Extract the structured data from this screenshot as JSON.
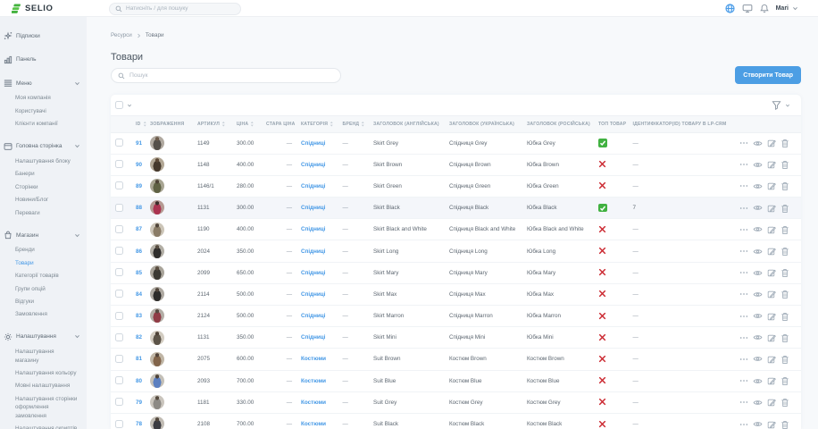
{
  "header": {
    "logo_text": "SELIO",
    "search_placeholder": "Натисніть / для пошуку",
    "user_name": "Mari"
  },
  "sidebar": {
    "items": [
      {
        "label": "Підписки",
        "icon": "sparkles"
      },
      {
        "label": "Панель",
        "icon": "bar-chart"
      },
      {
        "label": "Меню",
        "icon": "hamburger",
        "expanded": true,
        "children": [
          {
            "label": "Моя компанія"
          },
          {
            "label": "Користувачі"
          },
          {
            "label": "Клієнти компанії"
          }
        ]
      },
      {
        "label": "Головна сторінка",
        "icon": "browser-window",
        "expanded": true,
        "children": [
          {
            "label": "Налаштування блоку"
          },
          {
            "label": "Банери"
          },
          {
            "label": "Сторінки"
          },
          {
            "label": "Новини/Блог"
          },
          {
            "label": "Переваги"
          }
        ]
      },
      {
        "label": "Магазин",
        "icon": "shopping-bag",
        "expanded": true,
        "children": [
          {
            "label": "Бренди"
          },
          {
            "label": "Товари",
            "active": true
          },
          {
            "label": "Категорії товарів"
          },
          {
            "label": "Групи опцій"
          },
          {
            "label": "Відгуки"
          },
          {
            "label": "Замовлення"
          }
        ]
      },
      {
        "label": "Налаштування",
        "icon": "gear",
        "expanded": true,
        "children": [
          {
            "label": "Налаштування\nмагазину"
          },
          {
            "label": "Налаштування кольору"
          },
          {
            "label": "Мовні налаштування"
          },
          {
            "label": "Налаштування сторінки\nоформлення\nзамовлення"
          },
          {
            "label": "Налаштування скриптів"
          }
        ]
      }
    ]
  },
  "main": {
    "breadcrumb": [
      "Ресурси",
      "Товари"
    ],
    "title": "Товари",
    "search_placeholder": "Пошук",
    "create_button_label": "Створити Товар"
  },
  "table": {
    "columns": [
      {
        "label": "ID",
        "sortable": true
      },
      {
        "label": "ЗОБРАЖЕННЯ",
        "sortable": false
      },
      {
        "label": "АРТИКУЛ",
        "sortable": true
      },
      {
        "label": "ЦІНА",
        "sortable": true
      },
      {
        "label": "СТАРА ЦІНА",
        "sortable": false
      },
      {
        "label": "КАТЕГОРІЯ",
        "sortable": true
      },
      {
        "label": "БРЕНД",
        "sortable": true
      },
      {
        "label": "ЗАГОЛОВОК (АНГЛІЙСЬКА)",
        "sortable": false
      },
      {
        "label": "ЗАГОЛОВОК (УКРАЇНСЬКА)",
        "sortable": false
      },
      {
        "label": "ЗАГОЛОВОК (РОСІЙСЬКА)",
        "sortable": false
      },
      {
        "label": "ТОП ТОВАР",
        "sortable": false
      },
      {
        "label": "ІДЕНТИФІКАТОР(ID) ТОВАРУ В LP-CRM",
        "sortable": false
      }
    ],
    "rows": [
      {
        "id": "91",
        "sku": "1149",
        "price": "300.00",
        "old_price": "—",
        "category": "Спідниці",
        "brand": "—",
        "title_en": "Skirt Grey",
        "title_uk": "Спідниця Grey",
        "title_ru": "Юбка Grey",
        "top_product": true,
        "lp_crm_id": "—",
        "highlighted": false,
        "avatar_colors": [
          "#b0a9a0",
          "#55504a",
          "#6d5c4c"
        ]
      },
      {
        "id": "90",
        "sku": "1148",
        "price": "400.00",
        "old_price": "—",
        "category": "Спідниці",
        "brand": "—",
        "title_en": "Skirt Brown",
        "title_uk": "Спідниця Brown",
        "title_ru": "Юбка Brown",
        "top_product": false,
        "lp_crm_id": "—",
        "highlighted": false,
        "avatar_colors": [
          "#b2a795",
          "#46392c",
          "#5d4a38"
        ]
      },
      {
        "id": "89",
        "sku": "1146/1",
        "price": "280.00",
        "old_price": "—",
        "category": "Спідниці",
        "brand": "—",
        "title_en": "Skirt Green",
        "title_uk": "Спідниця Green",
        "title_ru": "Юбка Green",
        "top_product": false,
        "lp_crm_id": "—",
        "highlighted": false,
        "avatar_colors": [
          "#a8a593",
          "#5f6244",
          "#4d4336"
        ]
      },
      {
        "id": "88",
        "sku": "1131",
        "price": "300.00",
        "old_price": "—",
        "category": "Спідниці",
        "brand": "—",
        "title_en": "Skirt Black",
        "title_uk": "Спідниця Black",
        "title_ru": "Юбка Black",
        "top_product": true,
        "lp_crm_id": "7",
        "highlighted": true,
        "avatar_colors": [
          "#b59a93",
          "#ab3450",
          "#3a2d2a"
        ]
      },
      {
        "id": "87",
        "sku": "1190",
        "price": "400.00",
        "old_price": "—",
        "category": "Спідниці",
        "brand": "—",
        "title_en": "Skirt Black and White",
        "title_uk": "Спідниця Black and White",
        "title_ru": "Юбка Black and White",
        "top_product": false,
        "lp_crm_id": "—",
        "highlighted": false,
        "avatar_colors": [
          "#ccc5b8",
          "#8a7c67",
          "#50453a"
        ]
      },
      {
        "id": "86",
        "sku": "2024",
        "price": "350.00",
        "old_price": "—",
        "category": "Спідниці",
        "brand": "—",
        "title_en": "Skirt Long",
        "title_uk": "Спідниця Long",
        "title_ru": "Юбка Long",
        "top_product": false,
        "lp_crm_id": "—",
        "highlighted": false,
        "avatar_colors": [
          "#b3afa6",
          "#302e2c",
          "#574c40"
        ]
      },
      {
        "id": "85",
        "sku": "2099",
        "price": "650.00",
        "old_price": "—",
        "category": "Спідниці",
        "brand": "—",
        "title_en": "Skirt Mary",
        "title_uk": "Спідниця Mary",
        "title_ru": "Юбка Mary",
        "top_product": false,
        "lp_crm_id": "—",
        "highlighted": false,
        "avatar_colors": [
          "#a9a49a",
          "#3c3a34",
          "#5a4d40"
        ]
      },
      {
        "id": "84",
        "sku": "2114",
        "price": "500.00",
        "old_price": "—",
        "category": "Спідниці",
        "brand": "—",
        "title_en": "Skirt Max",
        "title_uk": "Спідниця Max",
        "title_ru": "Юбка Max",
        "top_product": false,
        "lp_crm_id": "—",
        "highlighted": false,
        "avatar_colors": [
          "#aea9a1",
          "#2d2c2a",
          "#51463b"
        ]
      },
      {
        "id": "83",
        "sku": "2124",
        "price": "500.00",
        "old_price": "—",
        "category": "Спідниці",
        "brand": "—",
        "title_en": "Skirt Marron",
        "title_uk": "Спідниця Marron",
        "title_ru": "Юбка Marron",
        "top_product": false,
        "lp_crm_id": "—",
        "highlighted": false,
        "avatar_colors": [
          "#b3aea6",
          "#903c46",
          "#554940"
        ]
      },
      {
        "id": "82",
        "sku": "1131",
        "price": "350.00",
        "old_price": "—",
        "category": "Спідниці",
        "brand": "—",
        "title_en": "Skirt Mini",
        "title_uk": "Спідниця Mini",
        "title_ru": "Юбка Mini",
        "top_product": false,
        "lp_crm_id": "—",
        "highlighted": false,
        "avatar_colors": [
          "#d3cdc2",
          "#5c5448",
          "#4f4338"
        ]
      },
      {
        "id": "81",
        "sku": "2075",
        "price": "600.00",
        "old_price": "—",
        "category": "Костюми",
        "brand": "—",
        "title_en": "Suit Brown",
        "title_uk": "Костюм Brown",
        "title_ru": "Костюм Brown",
        "top_product": false,
        "lp_crm_id": "—",
        "highlighted": false,
        "avatar_colors": [
          "#c0b6a6",
          "#82644a",
          "#53443a"
        ]
      },
      {
        "id": "80",
        "sku": "2093",
        "price": "700.00",
        "old_price": "—",
        "category": "Костюми",
        "brand": "—",
        "title_en": "Suit Blue",
        "title_uk": "Костюм Blue",
        "title_ru": "Костюм Blue",
        "top_product": false,
        "lp_crm_id": "—",
        "highlighted": false,
        "avatar_colors": [
          "#c4c0b8",
          "#5b7fc0",
          "#4d4238"
        ]
      },
      {
        "id": "79",
        "sku": "1181",
        "price": "330.00",
        "old_price": "—",
        "category": "Костюми",
        "brand": "—",
        "title_en": "Suit Grey",
        "title_uk": "Костюм Grey",
        "title_ru": "Костюм Grey",
        "top_product": false,
        "lp_crm_id": "—",
        "highlighted": false,
        "avatar_colors": [
          "#cac5bd",
          "#8d8a85",
          "#564b40"
        ]
      },
      {
        "id": "78",
        "sku": "2108",
        "price": "700.00",
        "old_price": "—",
        "category": "Костюми",
        "brand": "—",
        "title_en": "Suit Black",
        "title_uk": "Костюм Black",
        "title_ru": "Костюм Black",
        "top_product": false,
        "lp_crm_id": "—",
        "highlighted": false,
        "avatar_colors": [
          "#c1bcb4",
          "#3c3c42",
          "#52473c"
        ]
      }
    ]
  },
  "colors": {
    "accent_blue": "#4498e6",
    "button_blue": "#4c9ee4",
    "success_green": "#41b141",
    "danger_red": "#cc2b33",
    "logo_green": "#43b23e"
  }
}
